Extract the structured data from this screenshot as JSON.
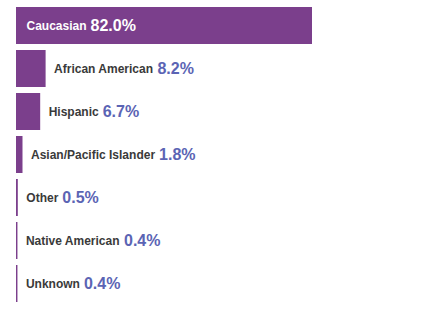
{
  "chart_data": {
    "type": "bar",
    "orientation": "horizontal",
    "categories": [
      "Caucasian",
      "African American",
      "Hispanic",
      "Asian/Pacific Islander",
      "Other",
      "Native American",
      "Unknown"
    ],
    "values": [
      82.0,
      8.2,
      6.7,
      1.8,
      0.5,
      0.4,
      0.4
    ],
    "value_labels": [
      "82.0%",
      "8.2%",
      "6.7%",
      "1.8%",
      "0.5%",
      "0.4%",
      "0.4%"
    ],
    "color": "#7b3f8c",
    "xlim": [
      0,
      82
    ],
    "data_labels": true,
    "tick_labels": false
  }
}
